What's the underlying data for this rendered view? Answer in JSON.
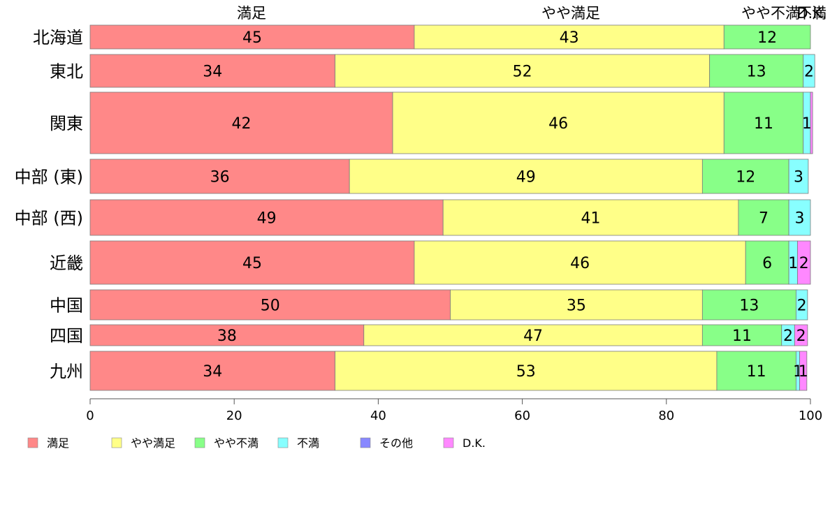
{
  "chart_data": {
    "type": "bar",
    "orientation": "horizontal",
    "stacked": true,
    "categories": [
      "北海道",
      "東北",
      "関東",
      "中部 (東)",
      "中部 (西)",
      "近畿",
      "中国",
      "四国",
      "九州"
    ],
    "series": [
      {
        "name": "満足",
        "color": "#ff8888",
        "values": [
          45,
          34,
          42,
          36,
          49,
          45,
          50,
          38,
          34
        ],
        "labels": [
          "45",
          "34",
          "42",
          "36",
          "49",
          "45",
          "50",
          "38",
          "34"
        ]
      },
      {
        "name": "やや満足",
        "color": "#ffff88",
        "values": [
          43,
          52,
          46,
          49,
          41,
          46,
          35,
          47,
          53
        ],
        "labels": [
          "43",
          "52",
          "46",
          "49",
          "41",
          "46",
          "35",
          "47",
          "53"
        ]
      },
      {
        "name": "やや不満",
        "color": "#88ff88",
        "values": [
          12,
          13,
          11,
          12,
          7,
          6,
          13,
          11,
          11
        ],
        "labels": [
          "12",
          "13",
          "11",
          "12",
          "7",
          "6",
          "13",
          "11",
          "11"
        ]
      },
      {
        "name": "不満",
        "color": "#88ffff",
        "values": [
          0,
          1.6,
          1.0,
          2.7,
          3.0,
          1.2,
          1.6,
          1.8,
          0.5
        ],
        "labels": [
          "",
          "2",
          "1",
          "3",
          "3",
          "1",
          "2",
          "2",
          "1"
        ]
      },
      {
        "name": "その他",
        "color": "#8888ff",
        "values": [
          0,
          0,
          0,
          0,
          0,
          0,
          0,
          0,
          0
        ],
        "labels": [
          "",
          "",
          "",
          "",
          "",
          "",
          "",
          "",
          ""
        ]
      },
      {
        "name": "D.K.",
        "color": "#ff88ff",
        "values": [
          0,
          0,
          0.3,
          0,
          0,
          1.8,
          0,
          1.8,
          1.0
        ],
        "labels": [
          "",
          "",
          "",
          "",
          "",
          "2",
          "",
          "2",
          "1"
        ]
      }
    ],
    "top_labels": [
      "満足",
      "やや満足",
      "やや不満",
      "不満",
      "D.K."
    ],
    "xlim": [
      0,
      100
    ],
    "xticks": [
      "0",
      "20",
      "40",
      "60",
      "80",
      "100"
    ],
    "legend_position": "bottom",
    "grid": false
  }
}
